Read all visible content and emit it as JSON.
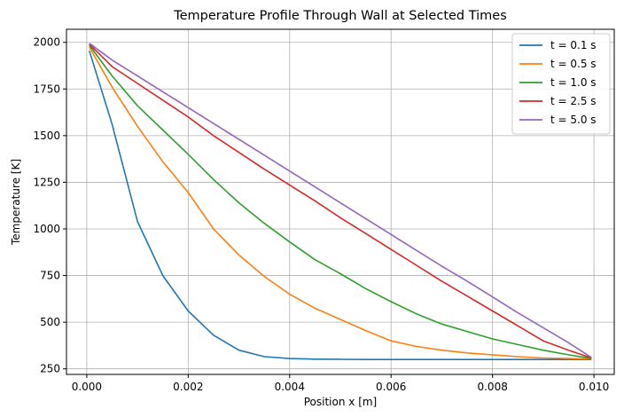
{
  "chart_data": {
    "type": "line",
    "title": "Temperature Profile Through Wall at Selected Times",
    "xlabel": "Position x [m]",
    "ylabel": "Temperature [K]",
    "xlim": [
      -0.0004,
      0.0104
    ],
    "ylim": [
      220,
      2070
    ],
    "xticks": [
      0.0,
      0.002,
      0.004,
      0.006,
      0.008,
      0.01
    ],
    "xtick_labels": [
      "0.000",
      "0.002",
      "0.004",
      "0.006",
      "0.008",
      "0.010"
    ],
    "yticks": [
      250,
      500,
      750,
      1000,
      1250,
      1500,
      1750,
      2000
    ],
    "ytick_labels": [
      "250",
      "500",
      "750",
      "1000",
      "1250",
      "1500",
      "1750",
      "2000"
    ],
    "grid": true,
    "legend_position": "top-right",
    "x": [
      5e-05,
      0.0005,
      0.001,
      0.0015,
      0.002,
      0.0025,
      0.003,
      0.0035,
      0.004,
      0.0045,
      0.005,
      0.0055,
      0.006,
      0.0065,
      0.007,
      0.0075,
      0.008,
      0.0085,
      0.009,
      0.0095,
      0.00995
    ],
    "series": [
      {
        "name": "t = 0.1 s",
        "color": "#1f77b4",
        "values": [
          1955,
          1560,
          1040,
          750,
          560,
          430,
          350,
          315,
          305,
          302,
          301,
          300,
          300,
          300,
          300,
          300,
          300,
          300,
          300,
          300,
          300
        ]
      },
      {
        "name": "t = 0.5 s",
        "color": "#ff7f0e",
        "values": [
          1975,
          1760,
          1550,
          1360,
          1195,
          1000,
          860,
          745,
          650,
          575,
          515,
          455,
          400,
          370,
          350,
          335,
          325,
          315,
          308,
          305,
          303
        ]
      },
      {
        "name": "t = 1.0 s",
        "color": "#2ca02c",
        "values": [
          1985,
          1820,
          1660,
          1530,
          1400,
          1265,
          1140,
          1030,
          930,
          835,
          760,
          680,
          610,
          545,
          490,
          450,
          410,
          380,
          350,
          325,
          305
        ]
      },
      {
        "name": "t = 2.5 s",
        "color": "#d62728",
        "values": [
          1990,
          1870,
          1780,
          1690,
          1600,
          1500,
          1410,
          1320,
          1235,
          1150,
          1060,
          975,
          890,
          805,
          720,
          640,
          560,
          480,
          400,
          350,
          308
        ]
      },
      {
        "name": "t = 5.0 s",
        "color": "#9467bd",
        "values": [
          1995,
          1905,
          1820,
          1735,
          1650,
          1565,
          1480,
          1395,
          1310,
          1225,
          1140,
          1055,
          970,
          885,
          800,
          720,
          635,
          550,
          470,
          390,
          310
        ]
      }
    ]
  }
}
